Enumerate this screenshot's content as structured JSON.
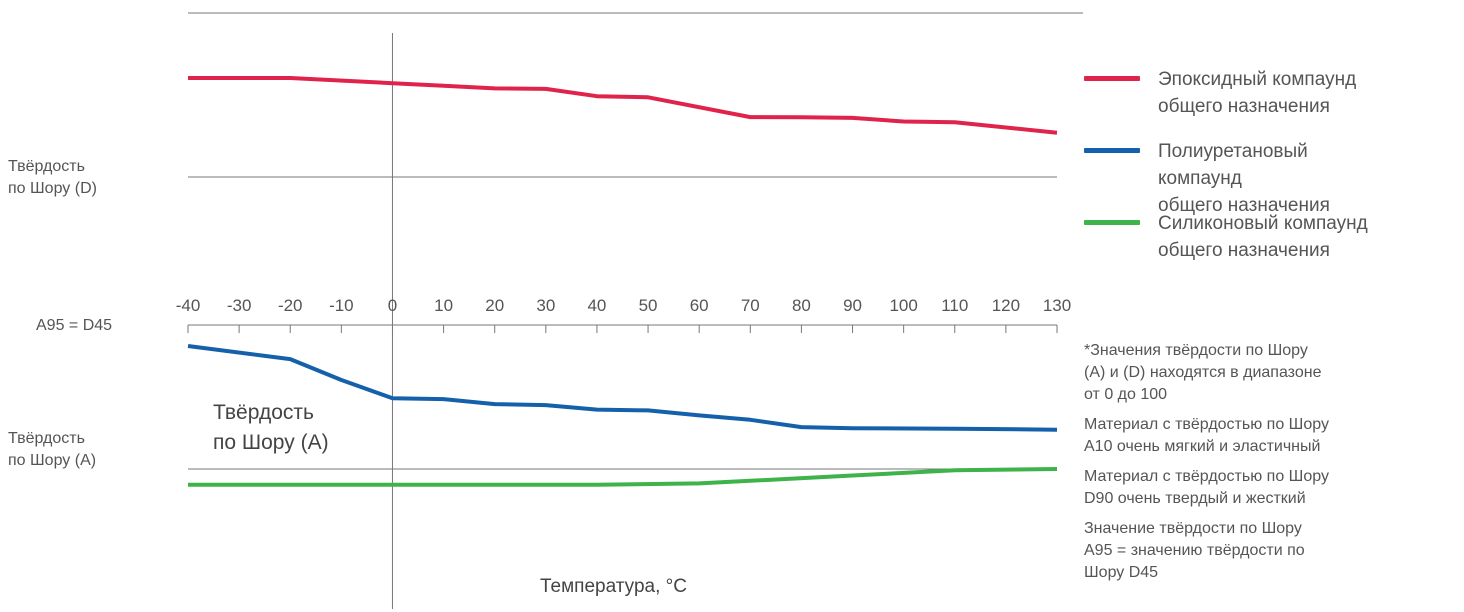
{
  "chart_data": {
    "type": "line",
    "title": "",
    "x": [
      -40,
      -30,
      -20,
      -10,
      0,
      10,
      20,
      30,
      40,
      50,
      60,
      70,
      80,
      90,
      100,
      110,
      120,
      130
    ],
    "xlabel": "Температура, °С",
    "xlim": [
      -40,
      130
    ],
    "x_tick_labels": [
      "-40",
      "-30",
      "-20",
      "-10",
      "0",
      "10",
      "20",
      "30",
      "40",
      "50",
      "60",
      "70",
      "80",
      "90",
      "100",
      "110",
      "120",
      "130"
    ],
    "grid": false,
    "legend_position": "right",
    "upper_panel": {
      "ylabel": "Твёрдость\nпо Шору (D)",
      "series": [
        {
          "name": "Эпоксидный компаунд\nобщего назначения",
          "color": "#e0234b",
          "points": [
            [
              -40,
              88
            ],
            [
              -20,
              88
            ],
            [
              0,
              86
            ],
            [
              10,
              85
            ],
            [
              20,
              84
            ],
            [
              30,
              83.8
            ],
            [
              40,
              81
            ],
            [
              50,
              80.6
            ],
            [
              70,
              73
            ],
            [
              80,
              72.9
            ],
            [
              90,
              72.7
            ],
            [
              100,
              71.3
            ],
            [
              110,
              71
            ],
            [
              130,
              67
            ]
          ]
        }
      ]
    },
    "lower_panel": {
      "ylabel": "Твёрдость\nпо Шору (А)",
      "inner_label": "Твёрдость\nпо Шору (А)",
      "top_reference": "А95 = D45",
      "series": [
        {
          "name": "Полиуретановый компаунд\nобщего назначения",
          "color": "#1560aa",
          "points": [
            [
              -40,
              91
            ],
            [
              -20,
              86
            ],
            [
              -10,
              78
            ],
            [
              0,
              71
            ],
            [
              10,
              70.7
            ],
            [
              20,
              68.8
            ],
            [
              30,
              68.4
            ],
            [
              40,
              66.7
            ],
            [
              50,
              66.4
            ],
            [
              60,
              64.5
            ],
            [
              70,
              62.8
            ],
            [
              80,
              60
            ],
            [
              90,
              59.6
            ],
            [
              110,
              59.4
            ],
            [
              130,
              59
            ]
          ]
        },
        {
          "name": "Силиконовый компаунд\nобщего назначения",
          "color": "#3db34a",
          "points": [
            [
              -40,
              38
            ],
            [
              40,
              38
            ],
            [
              60,
              38.5
            ],
            [
              70,
              39.5
            ],
            [
              90,
              41.5
            ],
            [
              110,
              43.5
            ],
            [
              130,
              44
            ]
          ]
        }
      ]
    },
    "notes": [
      "*Значения твёрдости по Шору\n(А) и (D) находятся в диапазоне\nот 0 до 100",
      "Материал с твёрдостью по Шору\nА10 очень мягкий и эластичный",
      "Материал с твёрдостью по Шору\nD90 очень твердый и жесткий",
      "Значение твёрдости по Шору\nА95 = значению твёрдости по\nШору D45"
    ]
  }
}
